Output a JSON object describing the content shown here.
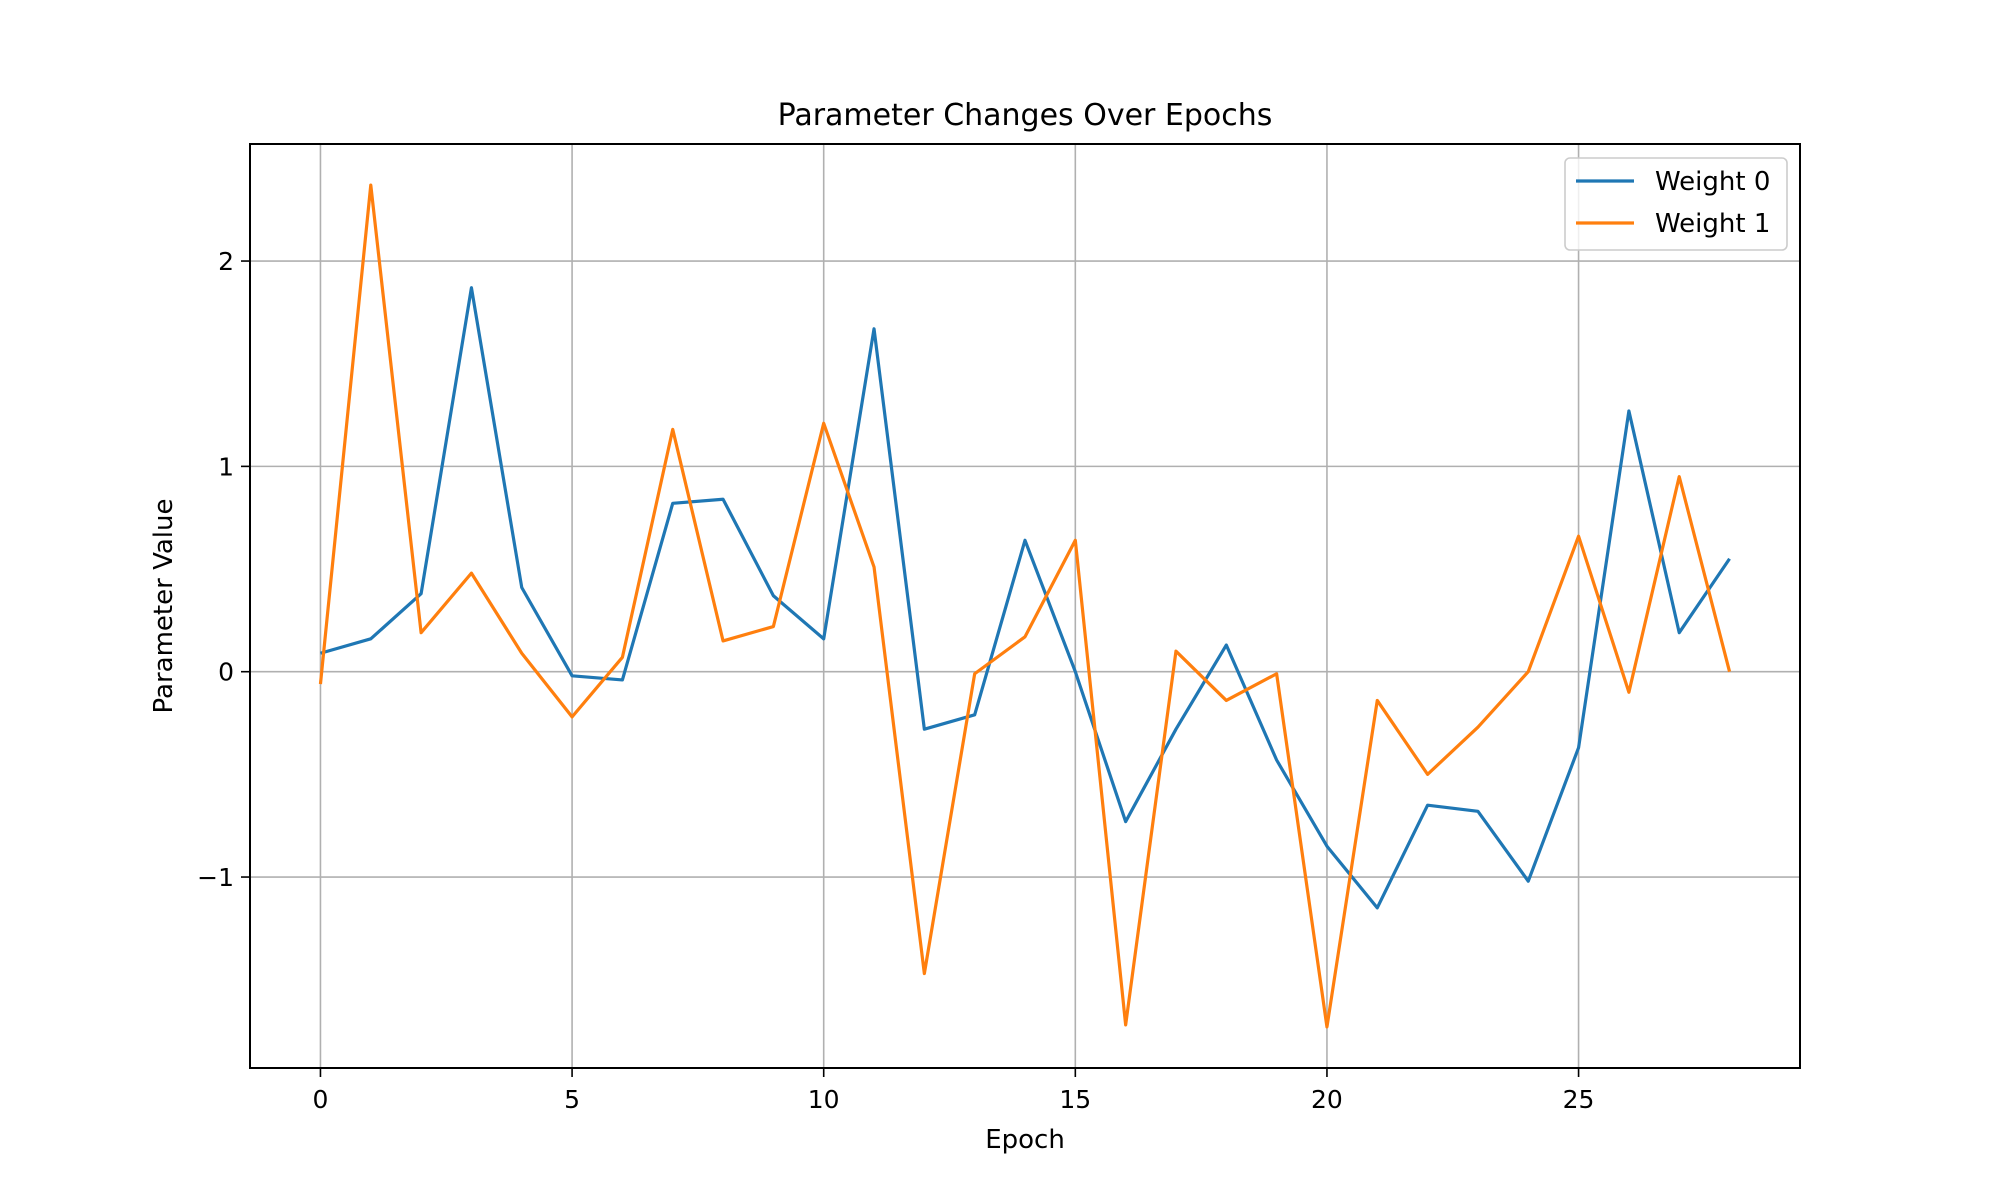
{
  "chart_data": {
    "type": "line",
    "title": "Parameter Changes Over Epochs",
    "xlabel": "Epoch",
    "ylabel": "Parameter Value",
    "xlim": [
      -1.4,
      29.4
    ],
    "ylim": [
      -1.93,
      2.57
    ],
    "xticks": [
      0,
      5,
      10,
      15,
      20,
      25
    ],
    "yticks": [
      -1,
      0,
      1,
      2
    ],
    "xtick_labels": [
      "0",
      "5",
      "10",
      "15",
      "20",
      "25"
    ],
    "ytick_labels": [
      "−1",
      "0",
      "1",
      "2"
    ],
    "grid": true,
    "legend_position": "upper-right",
    "x": [
      0,
      1,
      2,
      3,
      4,
      5,
      6,
      7,
      8,
      9,
      10,
      11,
      12,
      13,
      14,
      15,
      16,
      17,
      18,
      19,
      20,
      21,
      22,
      23,
      24,
      25,
      26,
      27,
      28
    ],
    "series": [
      {
        "name": "Weight 0",
        "color": "#1f77b4",
        "values": [
          0.09,
          0.16,
          0.38,
          1.87,
          0.41,
          -0.02,
          -0.04,
          0.82,
          0.84,
          0.37,
          0.16,
          1.67,
          -0.28,
          -0.21,
          0.64,
          0.0,
          -0.73,
          -0.28,
          0.13,
          -0.43,
          -0.85,
          -1.15,
          -0.65,
          -0.68,
          -1.02,
          -0.37,
          1.27,
          0.19,
          0.55
        ]
      },
      {
        "name": "Weight 1",
        "color": "#ff7f0e",
        "values": [
          -0.06,
          2.37,
          0.19,
          0.48,
          0.09,
          -0.22,
          0.07,
          1.18,
          0.15,
          0.22,
          1.21,
          0.51,
          -1.47,
          -0.01,
          0.17,
          0.64,
          -1.72,
          0.1,
          -0.14,
          -0.01,
          -1.73,
          -0.14,
          -0.5,
          -0.27,
          0.0,
          0.66,
          -0.1,
          0.95,
          0.0
        ]
      }
    ]
  }
}
